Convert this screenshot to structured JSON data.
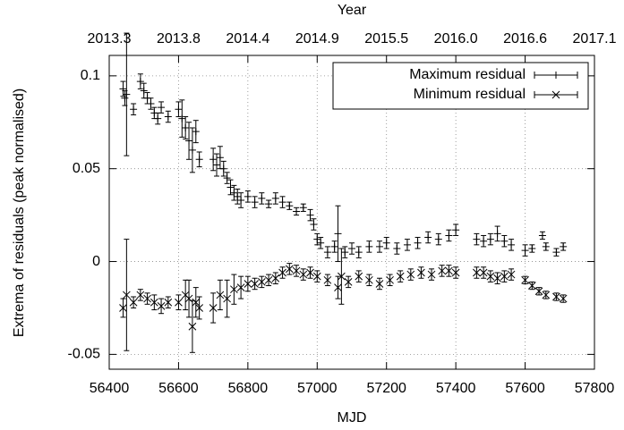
{
  "chart_data": {
    "type": "scatter",
    "xlabel": "MJD",
    "x2label": "Year",
    "ylabel": "Extrema of residuals (peak normalised)",
    "xlim": [
      56400,
      57800
    ],
    "ylim": [
      -0.058,
      0.111
    ],
    "xticks": [
      56400,
      56600,
      56800,
      57000,
      57200,
      57400,
      57600,
      57800
    ],
    "x2ticks": [
      {
        "value": 56400,
        "label": "2013.3"
      },
      {
        "value": 56600,
        "label": "2013.8"
      },
      {
        "value": 56800,
        "label": "2014.4"
      },
      {
        "value": 57000,
        "label": "2014.9"
      },
      {
        "value": 57200,
        "label": "2015.5"
      },
      {
        "value": 57400,
        "label": "2016.0"
      },
      {
        "value": 57600,
        "label": "2016.6"
      },
      {
        "value": 57800,
        "label": "2017.1"
      }
    ],
    "yticks": [
      -0.05,
      0,
      0.05,
      0.1
    ],
    "grid": true,
    "legend": "upper right",
    "series": [
      {
        "name": "Maximum residual",
        "color": "#000000",
        "marker": "plus",
        "x": [
          56440,
          56445,
          56450,
          56470,
          56490,
          56500,
          56510,
          56520,
          56530,
          56540,
          56550,
          56570,
          56600,
          56610,
          56620,
          56630,
          56640,
          56650,
          56660,
          56700,
          56710,
          56720,
          56730,
          56740,
          56750,
          56760,
          56770,
          56780,
          56800,
          56820,
          56840,
          56860,
          56880,
          56900,
          56920,
          56940,
          56960,
          56980,
          56990,
          57000,
          57010,
          57030,
          57050,
          57060,
          57080,
          57100,
          57120,
          57150,
          57180,
          57200,
          57230,
          57260,
          57290,
          57320,
          57350,
          57380,
          57400,
          57460,
          57480,
          57500,
          57520,
          57540,
          57560,
          57600,
          57620,
          57650,
          57660,
          57690,
          57710
        ],
        "values": [
          0.093,
          0.088,
          0.09,
          0.082,
          0.097,
          0.092,
          0.088,
          0.085,
          0.08,
          0.077,
          0.083,
          0.078,
          0.082,
          0.077,
          0.072,
          0.065,
          0.06,
          0.07,
          0.055,
          0.055,
          0.052,
          0.056,
          0.05,
          0.045,
          0.04,
          0.037,
          0.035,
          0.033,
          0.035,
          0.032,
          0.034,
          0.031,
          0.034,
          0.032,
          0.03,
          0.027,
          0.029,
          0.025,
          0.02,
          0.012,
          0.01,
          0.005,
          0.008,
          0.015,
          0.005,
          0.007,
          0.005,
          0.008,
          0.008,
          0.01,
          0.007,
          0.009,
          0.01,
          0.013,
          0.012,
          0.014,
          0.017,
          0.012,
          0.011,
          0.012,
          0.015,
          0.011,
          0.009,
          0.006,
          0.007,
          0.014,
          0.008,
          0.005,
          0.008
        ],
        "errors": [
          0.004,
          0.004,
          0.033,
          0.003,
          0.004,
          0.004,
          0.003,
          0.003,
          0.003,
          0.003,
          0.003,
          0.003,
          0.004,
          0.01,
          0.006,
          0.01,
          0.012,
          0.006,
          0.004,
          0.006,
          0.006,
          0.006,
          0.004,
          0.003,
          0.004,
          0.004,
          0.004,
          0.004,
          0.003,
          0.003,
          0.003,
          0.002,
          0.003,
          0.003,
          0.002,
          0.002,
          0.002,
          0.003,
          0.003,
          0.003,
          0.003,
          0.003,
          0.003,
          0.015,
          0.003,
          0.003,
          0.003,
          0.003,
          0.003,
          0.003,
          0.003,
          0.003,
          0.003,
          0.003,
          0.003,
          0.003,
          0.003,
          0.003,
          0.003,
          0.003,
          0.004,
          0.003,
          0.003,
          0.003,
          0.002,
          0.002,
          0.002,
          0.002,
          0.002
        ]
      },
      {
        "name": "Minimum residual",
        "color": "#000000",
        "marker": "cross",
        "x": [
          56440,
          56450,
          56470,
          56490,
          56510,
          56530,
          56550,
          56570,
          56600,
          56620,
          56630,
          56640,
          56650,
          56660,
          56700,
          56720,
          56740,
          56760,
          56780,
          56800,
          56820,
          56840,
          56860,
          56880,
          56900,
          56920,
          56940,
          56960,
          56980,
          57000,
          57030,
          57060,
          57070,
          57090,
          57120,
          57150,
          57180,
          57210,
          57240,
          57270,
          57300,
          57330,
          57360,
          57380,
          57400,
          57460,
          57480,
          57500,
          57520,
          57540,
          57560,
          57600,
          57620,
          57640,
          57660,
          57690,
          57710
        ],
        "values": [
          -0.025,
          -0.018,
          -0.022,
          -0.018,
          -0.02,
          -0.022,
          -0.024,
          -0.022,
          -0.022,
          -0.018,
          -0.02,
          -0.035,
          -0.022,
          -0.025,
          -0.025,
          -0.018,
          -0.02,
          -0.015,
          -0.014,
          -0.012,
          -0.012,
          -0.011,
          -0.01,
          -0.009,
          -0.006,
          -0.004,
          -0.005,
          -0.007,
          -0.006,
          -0.008,
          -0.01,
          -0.014,
          -0.008,
          -0.011,
          -0.008,
          -0.01,
          -0.012,
          -0.01,
          -0.008,
          -0.007,
          -0.006,
          -0.007,
          -0.005,
          -0.005,
          -0.006,
          -0.006,
          -0.006,
          -0.008,
          -0.009,
          -0.008,
          -0.007,
          -0.01,
          -0.013,
          -0.016,
          -0.018,
          -0.019,
          -0.02
        ],
        "errors": [
          0.005,
          0.03,
          0.003,
          0.003,
          0.003,
          0.004,
          0.004,
          0.003,
          0.004,
          0.008,
          0.01,
          0.014,
          0.008,
          0.006,
          0.008,
          0.008,
          0.01,
          0.008,
          0.006,
          0.004,
          0.003,
          0.003,
          0.003,
          0.003,
          0.003,
          0.003,
          0.003,
          0.003,
          0.003,
          0.003,
          0.003,
          0.006,
          0.015,
          0.003,
          0.003,
          0.003,
          0.003,
          0.003,
          0.003,
          0.003,
          0.003,
          0.003,
          0.003,
          0.003,
          0.003,
          0.003,
          0.003,
          0.003,
          0.003,
          0.003,
          0.003,
          0.002,
          0.002,
          0.002,
          0.002,
          0.002,
          0.002
        ]
      }
    ]
  }
}
